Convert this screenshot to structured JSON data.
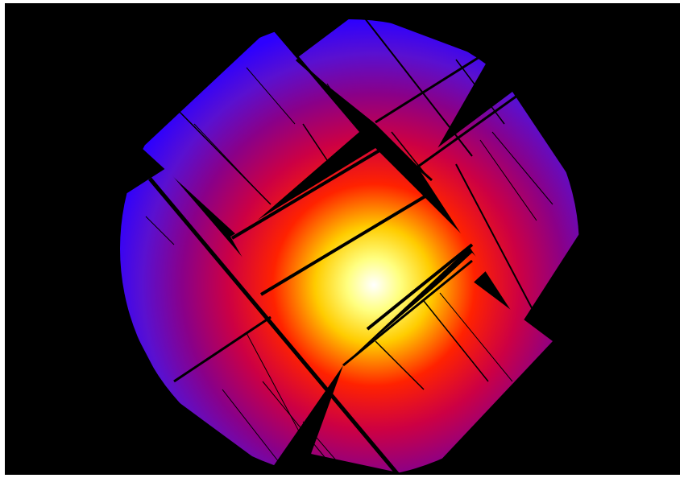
{
  "image": {
    "subject": "x-ray-mosaic-exposure-map",
    "colormap": [
      "#ffffff",
      "#ffff80",
      "#ffcc00",
      "#ff3300",
      "#cc0044",
      "#8a0088",
      "#5a10d0",
      "#2d00ff"
    ],
    "background_color": "#000000",
    "border_color": "#ffffff"
  }
}
